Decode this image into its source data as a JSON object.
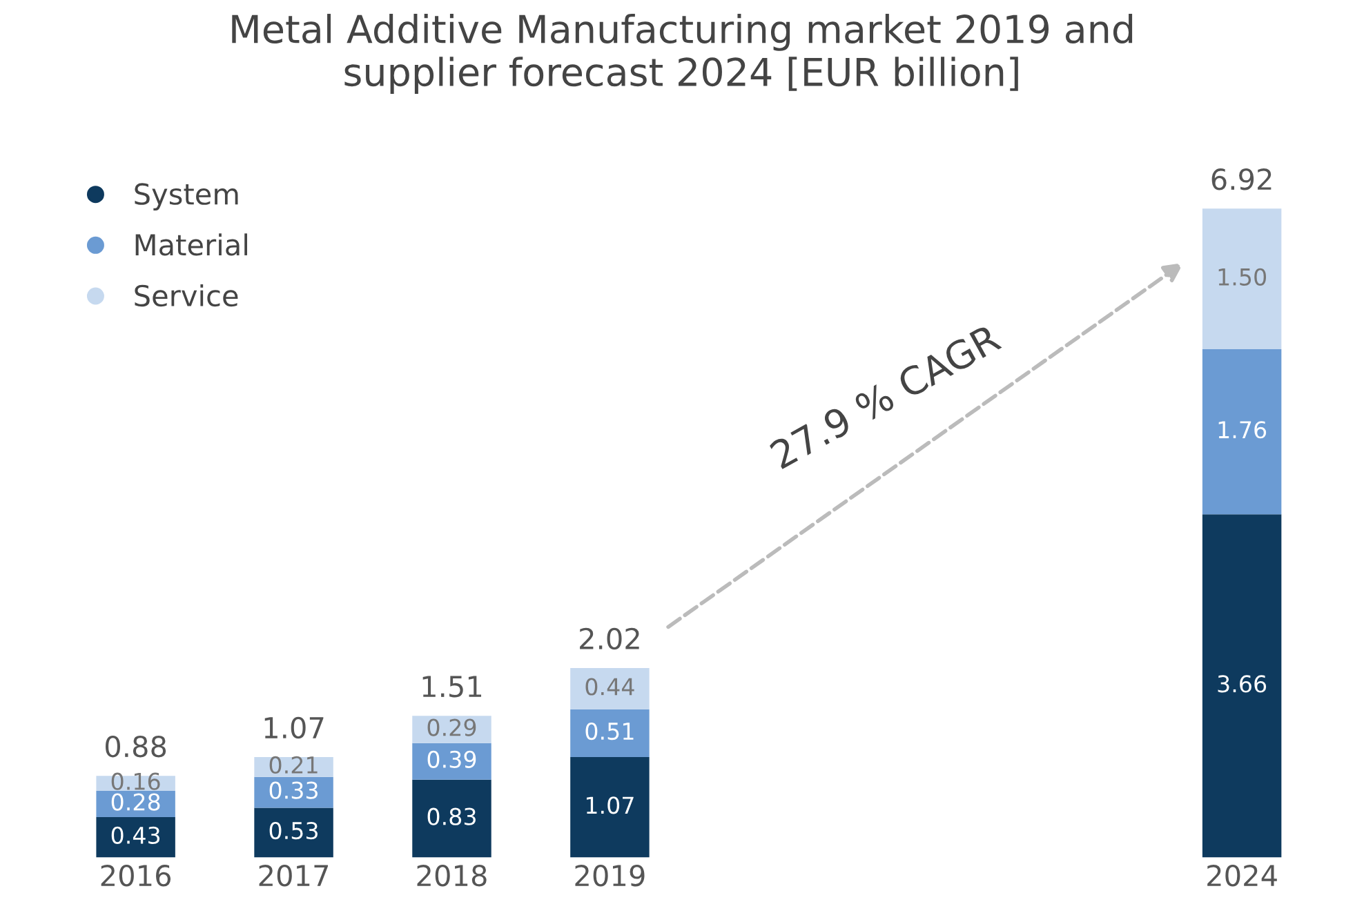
{
  "chart_data": {
    "type": "bar",
    "stacked": true,
    "title": "Metal Additive Manufacturing market 2019 and\nsupplier forecast 2024 [EUR billion]",
    "categories": [
      "2016",
      "2017",
      "2018",
      "2019",
      null,
      null,
      null,
      "2024"
    ],
    "series": [
      {
        "name": "System",
        "color": "#0e3a5e",
        "values": [
          0.43,
          0.53,
          0.83,
          1.07,
          null,
          null,
          null,
          3.66
        ],
        "value_labels": [
          "0.43",
          "0.53",
          "0.83",
          "1.07",
          null,
          null,
          null,
          "3.66"
        ]
      },
      {
        "name": "Material",
        "color": "#6b9bd3",
        "values": [
          0.28,
          0.33,
          0.39,
          0.51,
          null,
          null,
          null,
          1.76
        ],
        "value_labels": [
          "0.28",
          "0.33",
          "0.39",
          "0.51",
          null,
          null,
          null,
          "1.76"
        ]
      },
      {
        "name": "Service",
        "color": "#c6d9ef",
        "values": [
          0.16,
          0.21,
          0.29,
          0.44,
          null,
          null,
          null,
          1.5
        ],
        "value_labels": [
          "0.16",
          "0.21",
          "0.29",
          "0.44",
          null,
          null,
          null,
          "1.50"
        ]
      }
    ],
    "totals": [
      "0.88",
      "1.07",
      "1.51",
      "2.02",
      null,
      null,
      null,
      "6.92"
    ],
    "legend": "top left",
    "grid": false,
    "annotations": [
      "27.9 % CAGR"
    ]
  }
}
